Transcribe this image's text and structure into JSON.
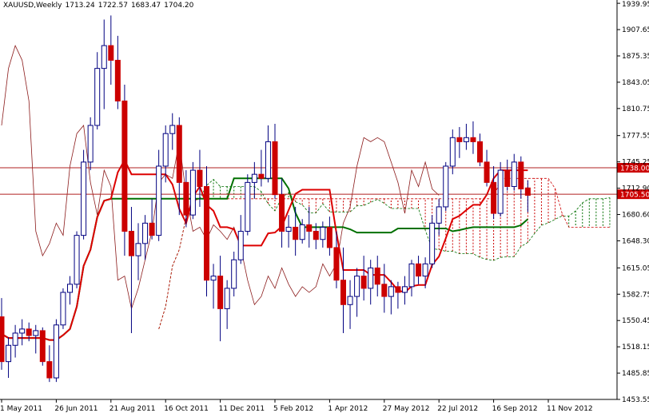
{
  "header": {
    "symbol": "XAUUSD,Weekly",
    "open": "1713.24",
    "high": "1722.57",
    "low": "1683.47",
    "close": "1704.20"
  },
  "colors": {
    "bull_body": "#ffffff",
    "bull_border": "#000080",
    "bear_body": "#cc0000",
    "wick": "#000080",
    "tenkan": "#dd0000",
    "kijun": "#007000",
    "chikou": "#8b1a1a",
    "kumo_bull": "#007000",
    "kumo_bear": "#cc0000",
    "hline": "#b02020",
    "marker_bg": "#cc0000",
    "grid_axis": "#000000"
  },
  "chart_data": {
    "type": "candlestick",
    "ylim": [
      1453.55,
      1944
    ],
    "y_ticks": [
      "1939.95",
      "1907.65",
      "1875.35",
      "1843.05",
      "1810.75",
      "1777.55",
      "1745.25",
      "1712.90",
      "1680.60",
      "1648.30",
      "1615.05",
      "1582.75",
      "1550.45",
      "1518.15",
      "1485.85",
      "1453.55"
    ],
    "x_ticks": [
      "1 May 2011",
      "26 Jun 2011",
      "21 Aug 2011",
      "16 Oct 2011",
      "11 Dec 2011",
      "5 Feb 2012",
      "1 Apr 2012",
      "27 May 2012",
      "22 Jul 2012",
      "16 Sep 2012",
      "11 Nov 2012"
    ],
    "x_tick_index": [
      0,
      8,
      16,
      24,
      32,
      40,
      48,
      56,
      64,
      72,
      80
    ],
    "horizontal_lines": [
      {
        "value": 1738.0,
        "label": "1738.00"
      },
      {
        "value": 1705.5,
        "label": "1705.50"
      }
    ],
    "candles": [
      {
        "o": 1555,
        "h": 1578,
        "l": 1490,
        "c": 1500
      },
      {
        "o": 1500,
        "h": 1530,
        "l": 1480,
        "c": 1520
      },
      {
        "o": 1520,
        "h": 1545,
        "l": 1505,
        "c": 1535
      },
      {
        "o": 1535,
        "h": 1552,
        "l": 1520,
        "c": 1540
      },
      {
        "o": 1540,
        "h": 1548,
        "l": 1525,
        "c": 1532
      },
      {
        "o": 1532,
        "h": 1545,
        "l": 1510,
        "c": 1538
      },
      {
        "o": 1538,
        "h": 1542,
        "l": 1495,
        "c": 1500
      },
      {
        "o": 1500,
        "h": 1520,
        "l": 1475,
        "c": 1480
      },
      {
        "o": 1480,
        "h": 1552,
        "l": 1475,
        "c": 1545
      },
      {
        "o": 1545,
        "h": 1590,
        "l": 1540,
        "c": 1585
      },
      {
        "o": 1585,
        "h": 1605,
        "l": 1570,
        "c": 1595
      },
      {
        "o": 1595,
        "h": 1660,
        "l": 1590,
        "c": 1655
      },
      {
        "o": 1655,
        "h": 1760,
        "l": 1650,
        "c": 1745
      },
      {
        "o": 1745,
        "h": 1800,
        "l": 1735,
        "c": 1790
      },
      {
        "o": 1790,
        "h": 1880,
        "l": 1785,
        "c": 1860
      },
      {
        "o": 1860,
        "h": 1920,
        "l": 1810,
        "c": 1888
      },
      {
        "o": 1888,
        "h": 1925,
        "l": 1840,
        "c": 1870
      },
      {
        "o": 1870,
        "h": 1900,
        "l": 1810,
        "c": 1820
      },
      {
        "o": 1820,
        "h": 1840,
        "l": 1630,
        "c": 1660
      },
      {
        "o": 1660,
        "h": 1690,
        "l": 1535,
        "c": 1630
      },
      {
        "o": 1630,
        "h": 1670,
        "l": 1600,
        "c": 1645
      },
      {
        "o": 1645,
        "h": 1680,
        "l": 1625,
        "c": 1670
      },
      {
        "o": 1670,
        "h": 1700,
        "l": 1650,
        "c": 1655
      },
      {
        "o": 1655,
        "h": 1760,
        "l": 1648,
        "c": 1740
      },
      {
        "o": 1740,
        "h": 1790,
        "l": 1720,
        "c": 1780
      },
      {
        "o": 1780,
        "h": 1805,
        "l": 1760,
        "c": 1790
      },
      {
        "o": 1790,
        "h": 1800,
        "l": 1680,
        "c": 1720
      },
      {
        "o": 1720,
        "h": 1735,
        "l": 1665,
        "c": 1680
      },
      {
        "o": 1680,
        "h": 1745,
        "l": 1675,
        "c": 1735
      },
      {
        "o": 1735,
        "h": 1760,
        "l": 1690,
        "c": 1715
      },
      {
        "o": 1715,
        "h": 1740,
        "l": 1580,
        "c": 1600
      },
      {
        "o": 1600,
        "h": 1620,
        "l": 1565,
        "c": 1605
      },
      {
        "o": 1605,
        "h": 1630,
        "l": 1525,
        "c": 1565
      },
      {
        "o": 1565,
        "h": 1600,
        "l": 1540,
        "c": 1590
      },
      {
        "o": 1590,
        "h": 1635,
        "l": 1580,
        "c": 1625
      },
      {
        "o": 1625,
        "h": 1680,
        "l": 1620,
        "c": 1660
      },
      {
        "o": 1660,
        "h": 1730,
        "l": 1655,
        "c": 1720
      },
      {
        "o": 1720,
        "h": 1745,
        "l": 1700,
        "c": 1730
      },
      {
        "o": 1730,
        "h": 1760,
        "l": 1715,
        "c": 1725
      },
      {
        "o": 1725,
        "h": 1790,
        "l": 1720,
        "c": 1770
      },
      {
        "o": 1770,
        "h": 1792,
        "l": 1700,
        "c": 1705
      },
      {
        "o": 1705,
        "h": 1725,
        "l": 1640,
        "c": 1660
      },
      {
        "o": 1660,
        "h": 1680,
        "l": 1640,
        "c": 1665
      },
      {
        "o": 1665,
        "h": 1690,
        "l": 1630,
        "c": 1650
      },
      {
        "o": 1650,
        "h": 1675,
        "l": 1645,
        "c": 1668
      },
      {
        "o": 1668,
        "h": 1690,
        "l": 1640,
        "c": 1660
      },
      {
        "o": 1660,
        "h": 1670,
        "l": 1638,
        "c": 1650
      },
      {
        "o": 1650,
        "h": 1672,
        "l": 1640,
        "c": 1665
      },
      {
        "o": 1665,
        "h": 1678,
        "l": 1630,
        "c": 1640
      },
      {
        "o": 1640,
        "h": 1660,
        "l": 1590,
        "c": 1600
      },
      {
        "o": 1600,
        "h": 1640,
        "l": 1535,
        "c": 1570
      },
      {
        "o": 1570,
        "h": 1600,
        "l": 1540,
        "c": 1580
      },
      {
        "o": 1580,
        "h": 1615,
        "l": 1555,
        "c": 1605
      },
      {
        "o": 1605,
        "h": 1630,
        "l": 1575,
        "c": 1590
      },
      {
        "o": 1590,
        "h": 1625,
        "l": 1570,
        "c": 1615
      },
      {
        "o": 1615,
        "h": 1630,
        "l": 1580,
        "c": 1595
      },
      {
        "o": 1595,
        "h": 1620,
        "l": 1560,
        "c": 1580
      },
      {
        "o": 1580,
        "h": 1600,
        "l": 1558,
        "c": 1592
      },
      {
        "o": 1592,
        "h": 1598,
        "l": 1565,
        "c": 1585
      },
      {
        "o": 1585,
        "h": 1605,
        "l": 1570,
        "c": 1592
      },
      {
        "o": 1592,
        "h": 1625,
        "l": 1580,
        "c": 1620
      },
      {
        "o": 1620,
        "h": 1630,
        "l": 1595,
        "c": 1605
      },
      {
        "o": 1605,
        "h": 1628,
        "l": 1590,
        "c": 1620
      },
      {
        "o": 1620,
        "h": 1680,
        "l": 1615,
        "c": 1670
      },
      {
        "o": 1670,
        "h": 1700,
        "l": 1655,
        "c": 1690
      },
      {
        "o": 1690,
        "h": 1745,
        "l": 1685,
        "c": 1740
      },
      {
        "o": 1740,
        "h": 1785,
        "l": 1730,
        "c": 1775
      },
      {
        "o": 1775,
        "h": 1788,
        "l": 1750,
        "c": 1770
      },
      {
        "o": 1770,
        "h": 1792,
        "l": 1760,
        "c": 1775
      },
      {
        "o": 1775,
        "h": 1795,
        "l": 1755,
        "c": 1770
      },
      {
        "o": 1770,
        "h": 1780,
        "l": 1740,
        "c": 1745
      },
      {
        "o": 1745,
        "h": 1760,
        "l": 1715,
        "c": 1720
      },
      {
        "o": 1720,
        "h": 1740,
        "l": 1675,
        "c": 1682
      },
      {
        "o": 1682,
        "h": 1745,
        "l": 1678,
        "c": 1735
      },
      {
        "o": 1735,
        "h": 1748,
        "l": 1710,
        "c": 1715
      },
      {
        "o": 1715,
        "h": 1755,
        "l": 1710,
        "c": 1745
      },
      {
        "o": 1745,
        "h": 1752,
        "l": 1700,
        "c": 1712
      },
      {
        "o": 1713.24,
        "h": 1722.57,
        "l": 1683.47,
        "c": 1704.2
      }
    ]
  }
}
